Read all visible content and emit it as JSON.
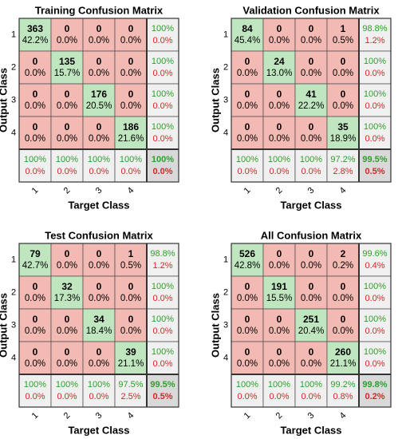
{
  "figure": {
    "colors": {
      "correct": "#bfe6bf",
      "incorrect": "#f3b9b3",
      "summary": "#f0f0f0",
      "total": "#d9d9d9",
      "pct_good": "#2ca02c",
      "pct_bad": "#d62728",
      "text": "#000000"
    }
  },
  "chart_data": [
    {
      "type": "heatmap",
      "title": "Training Confusion Matrix",
      "xlabel": "Target Class",
      "ylabel": "Output Class",
      "class_labels": [
        "1",
        "2",
        "3",
        "4"
      ],
      "counts": [
        [
          363,
          0,
          0,
          0
        ],
        [
          0,
          135,
          0,
          0
        ],
        [
          0,
          0,
          176,
          0
        ],
        [
          0,
          0,
          0,
          186
        ]
      ],
      "cell_percents": [
        [
          "42.2%",
          "0.0%",
          "0.0%",
          "0.0%"
        ],
        [
          "0.0%",
          "15.7%",
          "0.0%",
          "0.0%"
        ],
        [
          "0.0%",
          "0.0%",
          "20.5%",
          "0.0%"
        ],
        [
          "0.0%",
          "0.0%",
          "0.0%",
          "21.6%"
        ]
      ],
      "row_summary": [
        [
          "100%",
          "0.0%"
        ],
        [
          "100%",
          "0.0%"
        ],
        [
          "100%",
          "0.0%"
        ],
        [
          "100%",
          "0.0%"
        ]
      ],
      "col_summary": [
        [
          "100%",
          "0.0%"
        ],
        [
          "100%",
          "0.0%"
        ],
        [
          "100%",
          "0.0%"
        ],
        [
          "100%",
          "0.0%"
        ]
      ],
      "total": [
        "100%",
        "0.0%"
      ]
    },
    {
      "type": "heatmap",
      "title": "Validation Confusion Matrix",
      "xlabel": "Target Class",
      "ylabel": "Output Class",
      "class_labels": [
        "1",
        "2",
        "3",
        "4"
      ],
      "counts": [
        [
          84,
          0,
          0,
          1
        ],
        [
          0,
          24,
          0,
          0
        ],
        [
          0,
          0,
          41,
          0
        ],
        [
          0,
          0,
          0,
          35
        ]
      ],
      "cell_percents": [
        [
          "45.4%",
          "0.0%",
          "0.0%",
          "0.5%"
        ],
        [
          "0.0%",
          "13.0%",
          "0.0%",
          "0.0%"
        ],
        [
          "0.0%",
          "0.0%",
          "22.2%",
          "0.0%"
        ],
        [
          "0.0%",
          "0.0%",
          "0.0%",
          "18.9%"
        ]
      ],
      "row_summary": [
        [
          "98.8%",
          "1.2%"
        ],
        [
          "100%",
          "0.0%"
        ],
        [
          "100%",
          "0.0%"
        ],
        [
          "100%",
          "0.0%"
        ]
      ],
      "col_summary": [
        [
          "100%",
          "0.0%"
        ],
        [
          "100%",
          "0.0%"
        ],
        [
          "100%",
          "0.0%"
        ],
        [
          "97.2%",
          "2.8%"
        ]
      ],
      "total": [
        "99.5%",
        "0.5%"
      ]
    },
    {
      "type": "heatmap",
      "title": "Test Confusion Matrix",
      "xlabel": "Target Class",
      "ylabel": "Output Class",
      "class_labels": [
        "1",
        "2",
        "3",
        "4"
      ],
      "counts": [
        [
          79,
          0,
          0,
          1
        ],
        [
          0,
          32,
          0,
          0
        ],
        [
          0,
          0,
          34,
          0
        ],
        [
          0,
          0,
          0,
          39
        ]
      ],
      "cell_percents": [
        [
          "42.7%",
          "0.0%",
          "0.0%",
          "0.5%"
        ],
        [
          "0.0%",
          "17.3%",
          "0.0%",
          "0.0%"
        ],
        [
          "0.0%",
          "0.0%",
          "18.4%",
          "0.0%"
        ],
        [
          "0.0%",
          "0.0%",
          "0.0%",
          "21.1%"
        ]
      ],
      "row_summary": [
        [
          "98.8%",
          "1.2%"
        ],
        [
          "100%",
          "0.0%"
        ],
        [
          "100%",
          "0.0%"
        ],
        [
          "100%",
          "0.0%"
        ]
      ],
      "col_summary": [
        [
          "100%",
          "0.0%"
        ],
        [
          "100%",
          "0.0%"
        ],
        [
          "100%",
          "0.0%"
        ],
        [
          "97.5%",
          "2.5%"
        ]
      ],
      "total": [
        "99.5%",
        "0.5%"
      ]
    },
    {
      "type": "heatmap",
      "title": "All Confusion Matrix",
      "xlabel": "Target Class",
      "ylabel": "Output Class",
      "class_labels": [
        "1",
        "2",
        "3",
        "4"
      ],
      "counts": [
        [
          526,
          0,
          0,
          2
        ],
        [
          0,
          191,
          0,
          0
        ],
        [
          0,
          0,
          251,
          0
        ],
        [
          0,
          0,
          0,
          260
        ]
      ],
      "cell_percents": [
        [
          "42.8%",
          "0.0%",
          "0.0%",
          "0.2%"
        ],
        [
          "0.0%",
          "15.5%",
          "0.0%",
          "0.0%"
        ],
        [
          "0.0%",
          "0.0%",
          "20.4%",
          "0.0%"
        ],
        [
          "0.0%",
          "0.0%",
          "0.0%",
          "21.1%"
        ]
      ],
      "row_summary": [
        [
          "99.6%",
          "0.4%"
        ],
        [
          "100%",
          "0.0%"
        ],
        [
          "100%",
          "0.0%"
        ],
        [
          "100%",
          "0.0%"
        ]
      ],
      "col_summary": [
        [
          "100%",
          "0.0%"
        ],
        [
          "100%",
          "0.0%"
        ],
        [
          "100%",
          "0.0%"
        ],
        [
          "99.2%",
          "0.8%"
        ]
      ],
      "total": [
        "99.8%",
        "0.2%"
      ]
    }
  ]
}
